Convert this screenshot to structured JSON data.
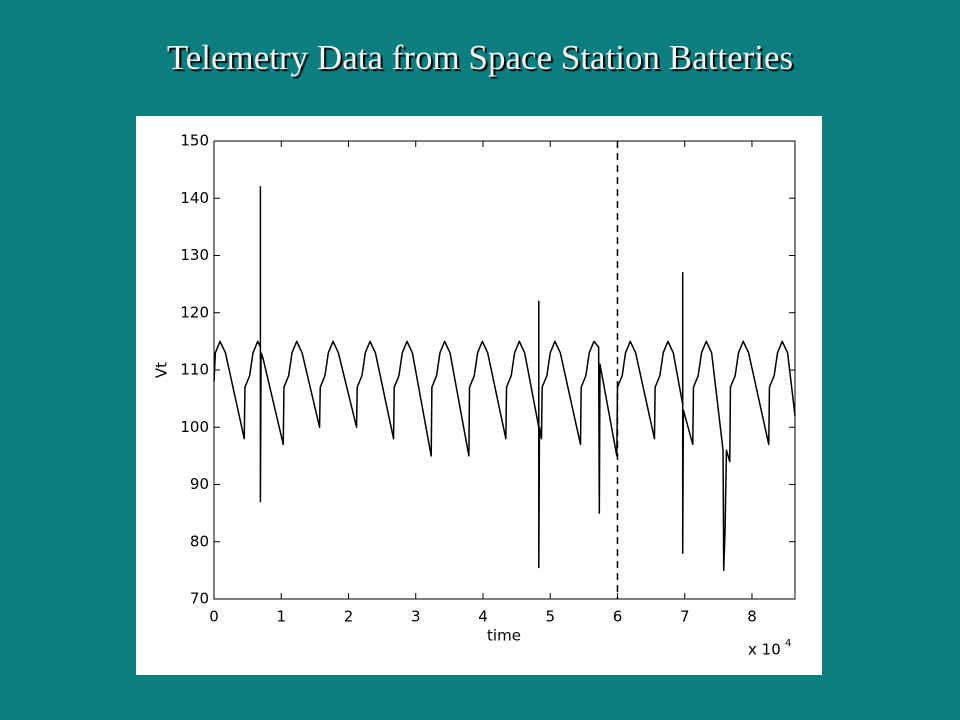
{
  "chart_data": {
    "type": "line",
    "title": "Telemetry Data from Space Station Batteries",
    "x_label": "time",
    "y_label": "Vt",
    "x_multiplier": {
      "base": "x 10",
      "exponent": "4"
    },
    "color": "#000000",
    "xlim": [
      0,
      8.64
    ],
    "ylim": [
      70,
      150
    ],
    "xticks": [
      0,
      1,
      2,
      3,
      4,
      5,
      6,
      7,
      8
    ],
    "yticks": [
      70,
      80,
      90,
      100,
      110,
      120,
      130,
      140,
      150
    ],
    "reference_lines": [
      {
        "x": 6,
        "style": "dashed"
      }
    ],
    "x": [
      0,
      0.02,
      0.09,
      0.17,
      0.45,
      0.46,
      0.53,
      0.58,
      0.65,
      0.69,
      0.69,
      0.69,
      0.7,
      0.73,
      1.03,
      1.04,
      1.11,
      1.16,
      1.23,
      1.31,
      1.57,
      1.58,
      1.65,
      1.7,
      1.77,
      1.85,
      2.12,
      2.13,
      2.2,
      2.25,
      2.32,
      2.4,
      2.67,
      2.68,
      2.75,
      2.8,
      2.87,
      2.95,
      3.23,
      3.24,
      3.31,
      3.36,
      3.43,
      3.51,
      3.79,
      3.8,
      3.87,
      3.92,
      3.99,
      4.07,
      4.34,
      4.35,
      4.42,
      4.47,
      4.54,
      4.62,
      4.83,
      4.83,
      4.83,
      4.84,
      4.87,
      4.88,
      4.95,
      5.0,
      5.07,
      5.15,
      5.45,
      5.46,
      5.53,
      5.58,
      5.65,
      5.72,
      5.73,
      5.74,
      5.99,
      6.0,
      6.07,
      6.12,
      6.19,
      6.27,
      6.55,
      6.56,
      6.63,
      6.68,
      6.75,
      6.83,
      6.97,
      6.97,
      6.97,
      6.98,
      7.12,
      7.13,
      7.2,
      7.25,
      7.32,
      7.4,
      7.57,
      7.58,
      7.6,
      7.62,
      7.67,
      7.68,
      7.75,
      7.8,
      7.87,
      7.95,
      8.25,
      8.26,
      8.33,
      8.38,
      8.45,
      8.53,
      8.64
    ],
    "values": [
      108,
      113,
      115,
      113,
      98,
      107,
      109,
      113,
      115,
      114,
      142,
      87,
      113,
      112,
      97,
      107,
      109,
      113,
      115,
      113,
      100,
      107,
      109,
      113,
      115,
      113,
      100,
      107,
      109,
      113,
      115,
      113,
      98,
      107,
      109,
      113,
      115,
      113,
      95,
      107,
      109,
      113,
      115,
      113,
      95,
      107,
      109,
      113,
      115,
      113,
      98,
      107,
      109,
      113,
      115,
      113,
      100,
      122,
      75.5,
      100,
      98,
      107,
      109,
      113,
      115,
      113,
      97,
      107,
      109,
      113,
      115,
      114,
      85,
      111,
      95,
      107,
      109,
      113,
      115,
      113,
      98,
      107,
      109,
      113,
      115,
      113,
      104,
      127,
      78,
      103,
      97,
      107,
      109,
      113,
      115,
      113,
      96,
      75,
      82,
      96,
      94,
      107,
      109,
      113,
      115,
      113,
      97,
      107,
      109,
      113,
      115,
      113,
      102
    ]
  }
}
